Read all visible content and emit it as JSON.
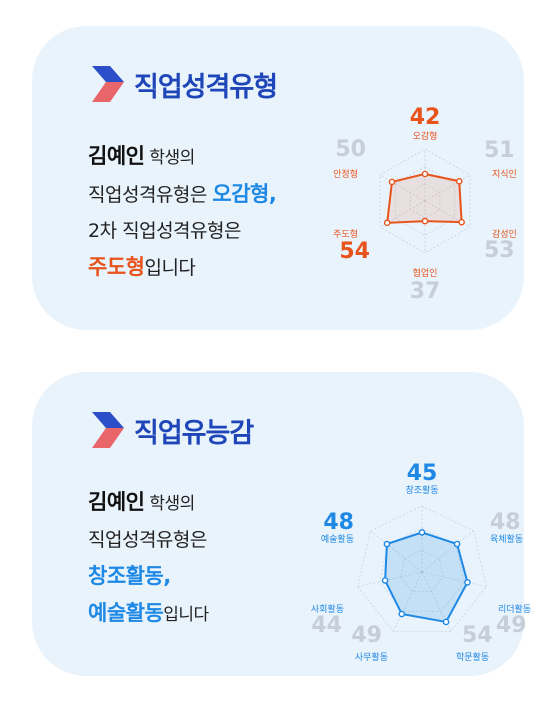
{
  "personality": {
    "title": "직업성격유형",
    "student_name": "김예인",
    "line1_suffix": " 학생의",
    "line2_prefix": "직업성격유형은 ",
    "primary": "오감형,",
    "line3": "2차 직업성격유형은",
    "secondary": "주도형",
    "ending": "입니다",
    "colors": {
      "title": "#1f46b8",
      "primary": "#1e88e5",
      "secondary": "#e8531c"
    },
    "radar": {
      "color": "#e8531c",
      "axes": [
        {
          "label": "오감형",
          "value": "42",
          "highlight": true
        },
        {
          "label": "지식인",
          "value": "51",
          "highlight": false
        },
        {
          "label": "감성인",
          "value": "53",
          "highlight": false
        },
        {
          "label": "협업인",
          "value": "37",
          "highlight": false
        },
        {
          "label": "주도형",
          "value": "54",
          "highlight": true
        },
        {
          "label": "안정형",
          "value": "50",
          "highlight": false
        }
      ]
    }
  },
  "competency": {
    "title": "직업유능감",
    "student_name": "김예인",
    "line1_suffix": " 학생의",
    "line2": "직업성격유형은",
    "primary": "창조활동,",
    "secondary": "예술활동",
    "ending": "입니다",
    "colors": {
      "title": "#1f46b8",
      "highlight": "#1e88e5"
    },
    "radar": {
      "color": "#1e88e5",
      "axes": [
        {
          "label": "창조활동",
          "value": "45",
          "highlight": true
        },
        {
          "label": "육체활동",
          "value": "48",
          "highlight": false
        },
        {
          "label": "리더활동",
          "value": "49",
          "highlight": false
        },
        {
          "label": "학문활동",
          "value": "54",
          "highlight": false
        },
        {
          "label": "사무활동",
          "value": "49",
          "highlight": false
        },
        {
          "label": "사회활동",
          "value": "44",
          "highlight": false
        },
        {
          "label": "예술활동",
          "value": "48",
          "highlight": true
        }
      ]
    }
  }
}
